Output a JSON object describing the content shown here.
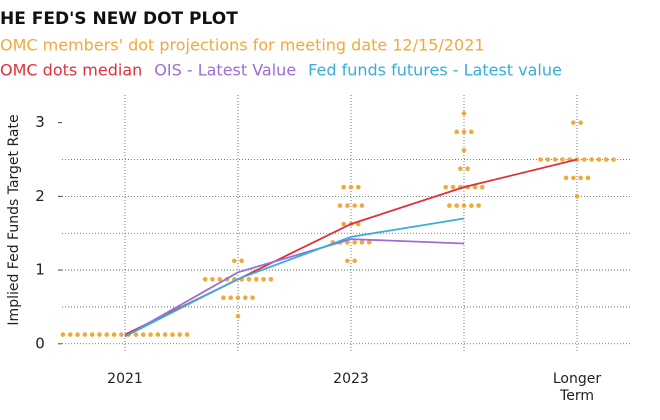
{
  "chart_data": {
    "type": "dot",
    "title": "HE FED'S NEW DOT PLOT",
    "y_label": "Implied Fed Funds Target Rate",
    "categories": [
      "2021",
      null,
      "2023",
      null,
      "Longer Term"
    ],
    "ylim": [
      -0.125,
      3.375
    ],
    "yticks": [
      0,
      1,
      2,
      3
    ],
    "ygrid": [
      0,
      0.5,
      1,
      1.5,
      2,
      2.5
    ],
    "grid": true,
    "dots": {
      "name": "OMC members' dot projections for meeting date 12/15/2021",
      "color": "#f2a93b",
      "values": [
        [
          0.125,
          0.125,
          0.125,
          0.125,
          0.125,
          0.125,
          0.125,
          0.125,
          0.125,
          0.125,
          0.125,
          0.125,
          0.125,
          0.125,
          0.125,
          0.125,
          0.125,
          0.125
        ],
        [
          1.125,
          1.125,
          0.875,
          0.875,
          0.875,
          0.875,
          0.875,
          0.875,
          0.875,
          0.875,
          0.875,
          0.875,
          0.625,
          0.625,
          0.625,
          0.625,
          0.625,
          0.375
        ],
        [
          2.125,
          2.125,
          2.125,
          1.875,
          1.875,
          1.875,
          1.875,
          1.625,
          1.625,
          1.625,
          1.375,
          1.375,
          1.375,
          1.375,
          1.375,
          1.375,
          1.125,
          1.125
        ],
        [
          3.125,
          2.875,
          2.875,
          2.875,
          2.625,
          2.375,
          2.375,
          2.125,
          2.125,
          2.125,
          2.125,
          2.125,
          2.125,
          1.875,
          1.875,
          1.875,
          1.875,
          1.875
        ],
        [
          3.0,
          3.0,
          2.5,
          2.5,
          2.5,
          2.5,
          2.5,
          2.5,
          2.5,
          2.5,
          2.5,
          2.5,
          2.5,
          2.25,
          2.25,
          2.25,
          2.25,
          2.0
        ]
      ]
    },
    "series": [
      {
        "name": "OMC dots median",
        "color": "#e0303a",
        "values": [
          0.125,
          0.875,
          1.625,
          2.125,
          2.5
        ]
      },
      {
        "name": "OIS - Latest Value",
        "color": "#9b6fd6",
        "values": [
          0.1,
          0.97,
          1.42,
          1.36,
          null
        ]
      },
      {
        "name": "Fed funds futures - Latest value",
        "color": "#36aedb",
        "values": [
          0.1,
          0.88,
          1.45,
          1.7,
          null
        ]
      }
    ]
  }
}
